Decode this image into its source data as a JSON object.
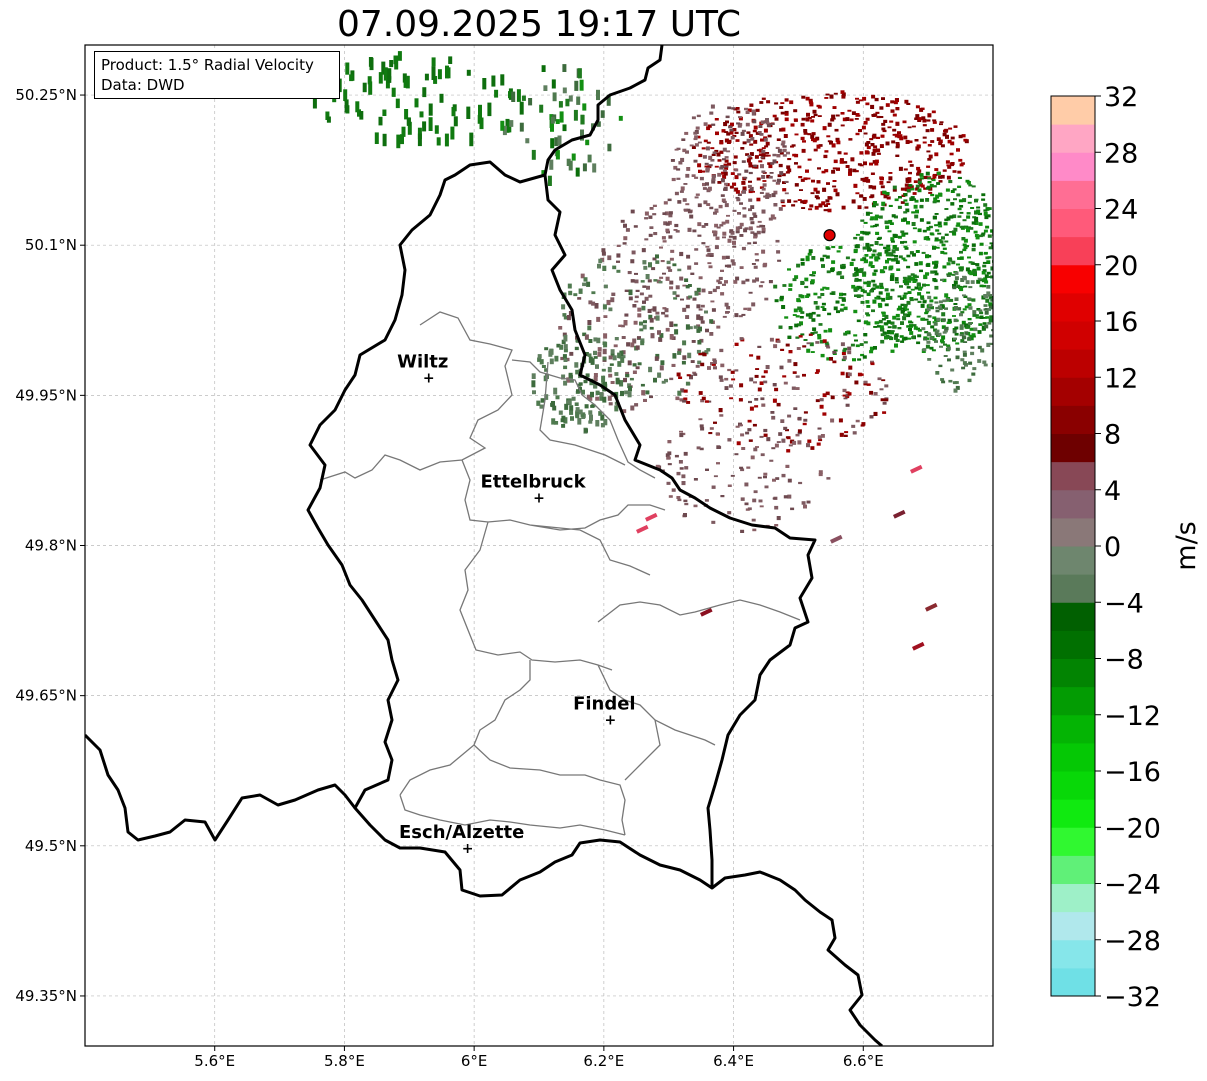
{
  "title": "07.09.2025 19:17 UTC",
  "info": {
    "product": "Product: 1.5° Radial Velocity",
    "source": "Data: DWD"
  },
  "map": {
    "lon_range": [
      5.4,
      6.8
    ],
    "lat_range": [
      49.3,
      50.3
    ],
    "lon_ticks": [
      {
        "value": 5.6,
        "label": "5.6°E"
      },
      {
        "value": 5.8,
        "label": "5.8°E"
      },
      {
        "value": 6.0,
        "label": "6°E"
      },
      {
        "value": 6.2,
        "label": "6.2°E"
      },
      {
        "value": 6.4,
        "label": "6.4°E"
      },
      {
        "value": 6.6,
        "label": "6.6°E"
      }
    ],
    "lat_ticks": [
      {
        "value": 49.35,
        "label": "49.35°N"
      },
      {
        "value": 49.5,
        "label": "49.5°N"
      },
      {
        "value": 49.65,
        "label": "49.65°N"
      },
      {
        "value": 49.8,
        "label": "49.8°N"
      },
      {
        "value": 49.95,
        "label": "49.95°N"
      },
      {
        "value": 50.1,
        "label": "50.1°N"
      },
      {
        "value": 50.25,
        "label": "50.25°N"
      }
    ],
    "grid": true,
    "cities": [
      {
        "name": "Wiltz",
        "lon": 5.93,
        "lat": 49.968
      },
      {
        "name": "Ettelbruck",
        "lon": 6.1,
        "lat": 49.848
      },
      {
        "name": "Findel",
        "lon": 6.21,
        "lat": 49.626
      },
      {
        "name": "Esch/Alzette",
        "lon": 5.99,
        "lat": 49.498
      }
    ],
    "radar_site": {
      "lon": 6.548,
      "lat": 50.11,
      "color": "#e00000"
    }
  },
  "colorbar": {
    "unit": "m/s",
    "range": [
      -32,
      32
    ],
    "ticks": [
      {
        "value": 32,
        "label": "32"
      },
      {
        "value": 28,
        "label": "28"
      },
      {
        "value": 24,
        "label": "24"
      },
      {
        "value": 20,
        "label": "20"
      },
      {
        "value": 16,
        "label": "16"
      },
      {
        "value": 12,
        "label": "12"
      },
      {
        "value": 8,
        "label": "8"
      },
      {
        "value": 4,
        "label": "4"
      },
      {
        "value": 0,
        "label": "0"
      },
      {
        "value": -4,
        "label": "−4"
      },
      {
        "value": -8,
        "label": "−8"
      },
      {
        "value": -12,
        "label": "−12"
      },
      {
        "value": -16,
        "label": "−16"
      },
      {
        "value": -20,
        "label": "−20"
      },
      {
        "value": -24,
        "label": "−24"
      },
      {
        "value": -28,
        "label": "−28"
      },
      {
        "value": -32,
        "label": "−32"
      }
    ],
    "colors_bottom_to_top": [
      "#6fe0e6",
      "#86e6ea",
      "#b0e8ec",
      "#9ef0c8",
      "#60f078",
      "#30f830",
      "#10ea10",
      "#08d808",
      "#05c805",
      "#04b404",
      "#039c03",
      "#028402",
      "#017001",
      "#016001",
      "#5a7a5a",
      "#6e866e",
      "#8a7878",
      "#866070",
      "#884856",
      "#6e0000",
      "#8a0000",
      "#a40000",
      "#bc0000",
      "#d00000",
      "#e00000",
      "#f80000",
      "#f84058",
      "#ff5a7a",
      "#ff6e94",
      "#ff8ac8",
      "#ffa6c4",
      "#ffcca8"
    ]
  },
  "echoes": {
    "inbound_color": "#1f7a1f",
    "outbound_color": "#8b0000",
    "weak_inbound_color": "#5f7f5f",
    "weak_outbound_color": "#7e5a60"
  }
}
